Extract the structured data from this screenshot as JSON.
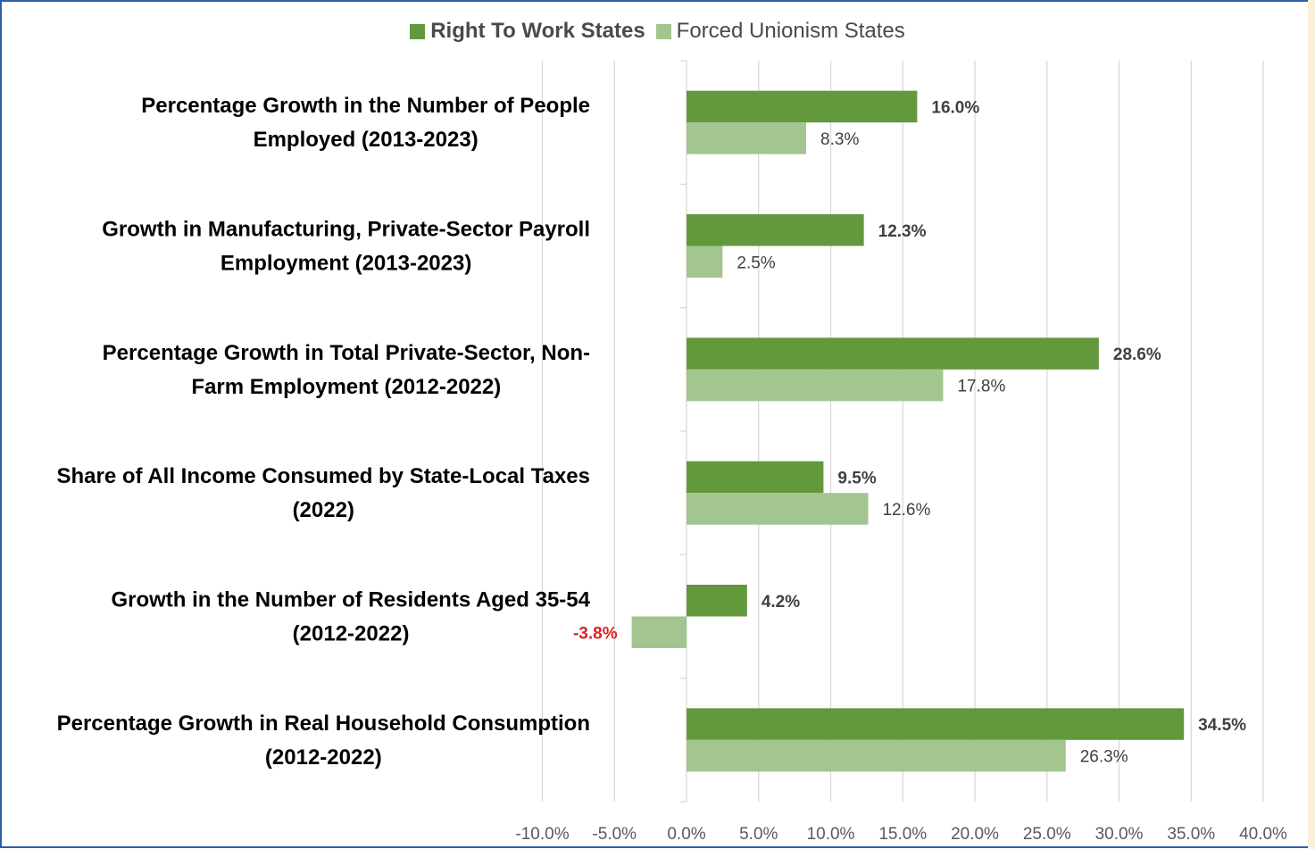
{
  "colors": {
    "right_to_work": "#63993d",
    "forced_unionism": "#a3c58f",
    "negative_label": "#e02020",
    "grid": "#d9d9d9",
    "border": "#2e5fa8"
  },
  "legend": {
    "items": [
      {
        "label": "Right To Work States",
        "bold": true
      },
      {
        "label": "Forced Unionism States",
        "bold": false
      }
    ]
  },
  "chart_data": {
    "type": "bar",
    "orientation": "horizontal",
    "categories": [
      [
        "Percentage Growth in the Number of People",
        "Employed (2013-2023)"
      ],
      [
        "Growth in Manufacturing, Private-Sector Payroll",
        "Employment (2013-2023)"
      ],
      [
        "Percentage Growth in Total Private-Sector, Non-",
        "Farm Employment (2012-2022)"
      ],
      [
        "Share of All Income Consumed by State-Local Taxes",
        "(2022)"
      ],
      [
        "Growth in the Number of Residents Aged 35-54",
        "(2012-2022)"
      ],
      [
        "Percentage Growth in Real Household Consumption",
        "(2012-2022)"
      ]
    ],
    "series": [
      {
        "name": "Right To Work States",
        "values": [
          16.0,
          12.3,
          28.6,
          9.5,
          4.2,
          34.5
        ],
        "labels_bold": true
      },
      {
        "name": "Forced Unionism States",
        "values": [
          8.3,
          2.5,
          17.8,
          12.6,
          -3.8,
          26.3
        ],
        "labels_bold": false
      }
    ],
    "xlim": [
      -10,
      40
    ],
    "xticks": [
      -10,
      -5,
      0,
      5,
      10,
      15,
      20,
      25,
      30,
      35,
      40
    ],
    "tick_format": "percent_1dp",
    "grid": "vertical",
    "legend_position": "top"
  }
}
